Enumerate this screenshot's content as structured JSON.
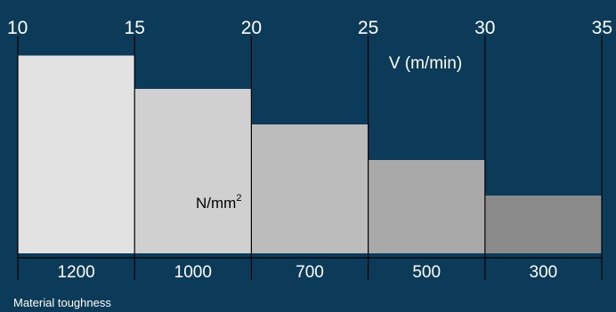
{
  "colors": {
    "background": "#0b3b58",
    "text": "#ffffff",
    "dark_text": "#000000",
    "line": "#000000",
    "bars": [
      "#e2e2e2",
      "#d0d0d0",
      "#bcbcbc",
      "#a9a9a9",
      "#8b8b8b"
    ]
  },
  "chart_data": {
    "type": "bar",
    "title": "",
    "top_axis": {
      "label": "V (m/min)",
      "ticks": [
        "10",
        "15",
        "20",
        "25",
        "30",
        "35"
      ],
      "range": [
        10,
        35
      ]
    },
    "bottom_axis": {
      "label": "Material toughness",
      "unit_label": "N/mm",
      "unit_superscript": "2",
      "categories": [
        "1200",
        "1000",
        "700",
        "500",
        "300"
      ]
    },
    "bars": [
      {
        "category": "1200",
        "v_from": 10,
        "v_to": 15,
        "value": 0.89
      },
      {
        "category": "1000",
        "v_from": 15,
        "v_to": 20,
        "value": 0.74
      },
      {
        "category": "700",
        "v_from": 20,
        "v_to": 25,
        "value": 0.58
      },
      {
        "category": "500",
        "v_from": 25,
        "v_to": 30,
        "value": 0.42
      },
      {
        "category": "300",
        "v_from": 30,
        "v_to": 35,
        "value": 0.26
      }
    ],
    "legend": "none",
    "grid": false
  }
}
